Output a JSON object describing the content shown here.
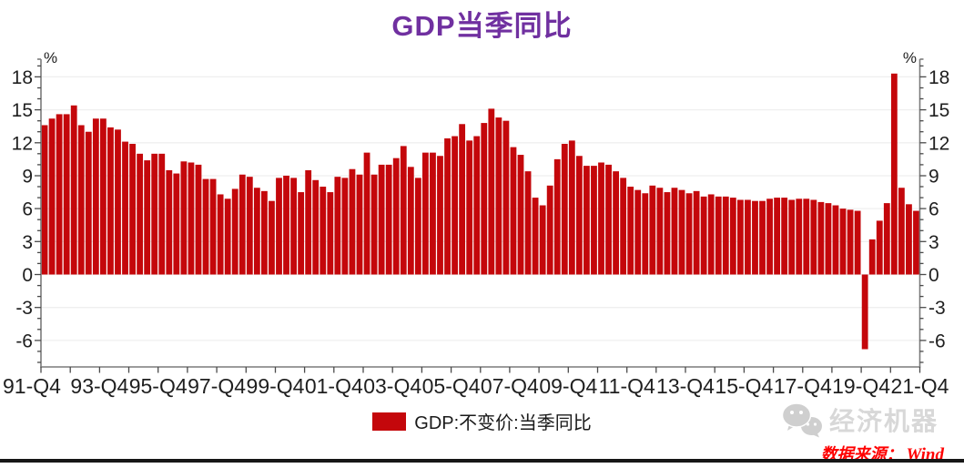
{
  "title": {
    "text": "GDP当季同比",
    "color": "#7030A0"
  },
  "legend": {
    "label": "GDP:不变价:当季同比"
  },
  "watermark": {
    "text": "经济机器",
    "icon": "wechat-icon"
  },
  "source": {
    "prefix": "数据来源：",
    "value": "Wind",
    "color": "#FF0000"
  },
  "chart_data": {
    "type": "bar",
    "title": "GDP当季同比",
    "series_name": "GDP:不变价:当季同比",
    "bar_color": "#C4070B",
    "y_unit": "%",
    "ylim": [
      -8.4,
      19.6
    ],
    "y_major_ticks": [
      18,
      15,
      12,
      9,
      6,
      3,
      0,
      -3,
      -6
    ],
    "y_minor_tick_step": 1,
    "grid": "horizontal-light-gray",
    "legend_position": "bottom-center",
    "x_tick_labels": [
      "91-Q4",
      "93-Q4",
      "95-Q4",
      "97-Q4",
      "99-Q4",
      "01-Q4",
      "03-Q4",
      "05-Q4",
      "07-Q4",
      "09-Q4",
      "11-Q4",
      "13-Q4",
      "15-Q4",
      "17-Q4",
      "19-Q4",
      "21-Q4"
    ],
    "quarters": [
      "1992Q1",
      "1992Q2",
      "1992Q3",
      "1992Q4",
      "1993Q1",
      "1993Q2",
      "1993Q3",
      "1993Q4",
      "1994Q1",
      "1994Q2",
      "1994Q3",
      "1994Q4",
      "1995Q1",
      "1995Q2",
      "1995Q3",
      "1995Q4",
      "1996Q1",
      "1996Q2",
      "1996Q3",
      "1996Q4",
      "1997Q1",
      "1997Q2",
      "1997Q3",
      "1997Q4",
      "1998Q1",
      "1998Q2",
      "1998Q3",
      "1998Q4",
      "1999Q1",
      "1999Q2",
      "1999Q3",
      "1999Q4",
      "2000Q1",
      "2000Q2",
      "2000Q3",
      "2000Q4",
      "2001Q1",
      "2001Q2",
      "2001Q3",
      "2001Q4",
      "2002Q1",
      "2002Q2",
      "2002Q3",
      "2002Q4",
      "2003Q1",
      "2003Q2",
      "2003Q3",
      "2003Q4",
      "2004Q1",
      "2004Q2",
      "2004Q3",
      "2004Q4",
      "2005Q1",
      "2005Q2",
      "2005Q3",
      "2005Q4",
      "2006Q1",
      "2006Q2",
      "2006Q3",
      "2006Q4",
      "2007Q1",
      "2007Q2",
      "2007Q3",
      "2007Q4",
      "2008Q1",
      "2008Q2",
      "2008Q3",
      "2008Q4",
      "2009Q1",
      "2009Q2",
      "2009Q3",
      "2009Q4",
      "2010Q1",
      "2010Q2",
      "2010Q3",
      "2010Q4",
      "2011Q1",
      "2011Q2",
      "2011Q3",
      "2011Q4",
      "2012Q1",
      "2012Q2",
      "2012Q3",
      "2012Q4",
      "2013Q1",
      "2013Q2",
      "2013Q3",
      "2013Q4",
      "2014Q1",
      "2014Q2",
      "2014Q3",
      "2014Q4",
      "2015Q1",
      "2015Q2",
      "2015Q3",
      "2015Q4",
      "2016Q1",
      "2016Q2",
      "2016Q3",
      "2016Q4",
      "2017Q1",
      "2017Q2",
      "2017Q3",
      "2017Q4",
      "2018Q1",
      "2018Q2",
      "2018Q3",
      "2018Q4",
      "2019Q1",
      "2019Q2",
      "2019Q3",
      "2019Q4",
      "2020Q1",
      "2020Q2",
      "2020Q3",
      "2020Q4",
      "2021Q1",
      "2021Q2",
      "2021Q3",
      "2021Q4"
    ],
    "values": [
      13.6,
      14.2,
      14.6,
      14.6,
      15.4,
      13.6,
      13.0,
      14.2,
      14.2,
      13.4,
      13.2,
      12.1,
      11.9,
      11.0,
      10.4,
      11.0,
      11.0,
      9.5,
      9.2,
      10.3,
      10.2,
      10.0,
      8.7,
      8.7,
      7.3,
      6.9,
      7.8,
      9.1,
      8.9,
      7.9,
      7.6,
      6.7,
      8.8,
      9.0,
      8.8,
      7.5,
      9.5,
      8.6,
      8.0,
      7.5,
      8.9,
      8.8,
      9.6,
      9.1,
      11.1,
      9.1,
      10.0,
      10.0,
      10.6,
      11.7,
      9.8,
      8.8,
      11.1,
      11.1,
      10.8,
      12.4,
      12.6,
      13.7,
      12.2,
      12.6,
      13.8,
      15.1,
      14.3,
      14.0,
      11.6,
      10.9,
      9.4,
      7.0,
      6.3,
      8.1,
      10.5,
      11.9,
      12.2,
      10.8,
      9.9,
      9.9,
      10.2,
      10.0,
      9.4,
      8.8,
      8.0,
      7.7,
      7.4,
      8.1,
      7.9,
      7.5,
      7.9,
      7.7,
      7.4,
      7.6,
      7.1,
      7.3,
      7.1,
      7.1,
      7.0,
      6.8,
      6.8,
      6.7,
      6.7,
      6.9,
      7.0,
      7.0,
      6.8,
      6.9,
      6.9,
      6.8,
      6.6,
      6.5,
      6.3,
      6.0,
      5.9,
      5.8,
      -6.8,
      3.2,
      4.9,
      6.5,
      18.3,
      7.9,
      6.4,
      5.8
    ]
  }
}
